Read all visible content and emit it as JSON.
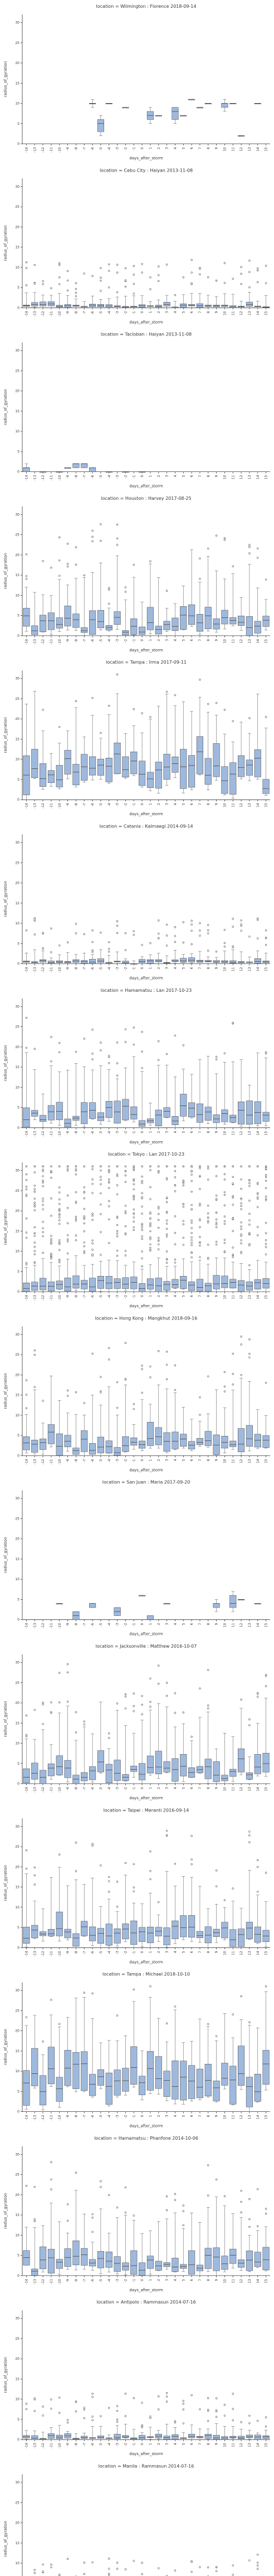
{
  "chart_data": {
    "type": "box",
    "x_label": "days_after_storm",
    "y_label": "radius_of_gyration",
    "x_categories": [
      "-14",
      "-13",
      "-12",
      "-11",
      "-10",
      "-9",
      "-8",
      "-7",
      "-6",
      "-5",
      "-4",
      "-3",
      "-2",
      "-1",
      "0",
      "1",
      "2",
      "3",
      "4",
      "5",
      "6",
      "7",
      "8",
      "9",
      "10",
      "11",
      "12",
      "13",
      "14",
      "15"
    ],
    "ylim": [
      0,
      32
    ],
    "y_ticks": [
      0,
      5,
      10,
      15,
      20,
      25,
      30
    ],
    "panels": [
      {
        "title": "location = Wilmington : Florence 2018-09-14",
        "style": "sparse",
        "boxes": [
          [
            null,
            null,
            null,
            null,
            null
          ],
          [
            null,
            null,
            null,
            null,
            null
          ],
          [
            null,
            null,
            null,
            null,
            null
          ],
          [
            null,
            null,
            null,
            null,
            null
          ],
          [
            null,
            null,
            null,
            null,
            null
          ],
          [
            null,
            null,
            null,
            null,
            null
          ],
          [
            null,
            null,
            null,
            null,
            null
          ],
          [
            null,
            null,
            null,
            null,
            null
          ],
          [
            9,
            10,
            10,
            10,
            11
          ],
          [
            2,
            3,
            5,
            6,
            7
          ],
          [
            10,
            10,
            10,
            10,
            10
          ],
          [
            null,
            null,
            null,
            null,
            null
          ],
          [
            9,
            9,
            9,
            9,
            9
          ],
          [
            null,
            null,
            null,
            null,
            null
          ],
          [
            null,
            null,
            null,
            null,
            null
          ],
          [
            5,
            6,
            7,
            8,
            9
          ],
          [
            7,
            7,
            7,
            7,
            7
          ],
          [
            null,
            null,
            null,
            null,
            null
          ],
          [
            5,
            6,
            8,
            9,
            9
          ],
          [
            7,
            7,
            7,
            7,
            7
          ],
          [
            11,
            11,
            11,
            11,
            11
          ],
          [
            9,
            9,
            9,
            9,
            9
          ],
          [
            10,
            10,
            10,
            10,
            10
          ],
          [
            null,
            null,
            null,
            null,
            null
          ],
          [
            8,
            9,
            10,
            10,
            11
          ],
          [
            10,
            10,
            10,
            10,
            10
          ],
          [
            2,
            2,
            2,
            2,
            2
          ],
          [
            null,
            null,
            null,
            null,
            null
          ],
          [
            10,
            10,
            10,
            10,
            10
          ],
          [
            null,
            null,
            null,
            null,
            null
          ]
        ]
      },
      {
        "title": "location = Cebu City : Haiyan 2013-11-08",
        "style": "flat"
      },
      {
        "title": "location = Tacloban : Haiyan 2013-11-08",
        "style": "sparse",
        "boxes": [
          [
            0,
            0,
            1,
            1,
            2
          ],
          [
            null,
            null,
            null,
            null,
            null
          ],
          [
            0,
            0,
            0,
            0,
            0
          ],
          [
            null,
            null,
            null,
            null,
            null
          ],
          [
            0,
            0,
            0,
            0,
            0
          ],
          [
            1,
            1,
            1,
            1,
            1
          ],
          [
            1,
            1,
            2,
            2,
            2
          ],
          [
            1,
            1,
            2,
            2,
            2
          ],
          [
            0,
            0,
            1,
            1,
            1
          ],
          [
            null,
            null,
            null,
            null,
            null
          ],
          [
            0,
            0,
            0,
            0,
            0
          ],
          [
            null,
            null,
            null,
            null,
            null
          ],
          [
            0,
            0,
            0,
            0,
            0
          ],
          [
            null,
            null,
            null,
            null,
            null
          ],
          [
            0,
            0,
            0,
            0,
            0
          ],
          [
            null,
            null,
            null,
            null,
            null
          ],
          [
            null,
            null,
            null,
            null,
            null
          ],
          [
            null,
            null,
            null,
            null,
            null
          ],
          [
            null,
            null,
            null,
            null,
            null
          ],
          [
            null,
            null,
            null,
            null,
            null
          ],
          [
            null,
            null,
            null,
            null,
            null
          ],
          [
            null,
            null,
            null,
            null,
            null
          ],
          [
            null,
            null,
            null,
            null,
            null
          ],
          [
            null,
            null,
            null,
            null,
            null
          ],
          [
            null,
            null,
            null,
            null,
            null
          ],
          [
            null,
            null,
            null,
            null,
            null
          ],
          [
            null,
            null,
            null,
            null,
            null
          ],
          [
            null,
            null,
            null,
            null,
            null
          ],
          [
            null,
            null,
            null,
            null,
            null
          ],
          [
            null,
            null,
            null,
            null,
            null
          ]
        ]
      },
      {
        "title": "location = Houston : Harvey 2017-08-25",
        "style": "wide"
      },
      {
        "title": "location = Tampa : Irma 2017-09-11",
        "style": "tall"
      },
      {
        "title": "location = Catania : Kalmaegi 2014-09-14",
        "style": "flat"
      },
      {
        "title": "location = Hamamatsu : Lan 2017-10-23",
        "style": "wide"
      },
      {
        "title": "location = Tokyo : Lan 2017-10-23",
        "style": "dense"
      },
      {
        "title": "location = Hong Kong : Mangkhut 2018-09-16",
        "style": "wide"
      },
      {
        "title": "location = San Juan : Maria 2017-09-20",
        "style": "sparse",
        "boxes": [
          [
            null,
            null,
            null,
            null,
            null
          ],
          [
            null,
            null,
            null,
            null,
            null
          ],
          [
            null,
            null,
            null,
            null,
            null
          ],
          [
            null,
            null,
            null,
            null,
            null
          ],
          [
            4,
            4,
            4,
            4,
            4
          ],
          [
            null,
            null,
            null,
            null,
            null
          ],
          [
            0,
            0,
            1,
            2,
            2
          ],
          [
            null,
            null,
            null,
            null,
            null
          ],
          [
            3,
            3,
            4,
            4,
            4
          ],
          [
            null,
            null,
            null,
            null,
            null
          ],
          [
            null,
            null,
            null,
            null,
            null
          ],
          [
            1,
            1,
            2,
            3,
            3
          ],
          [
            null,
            null,
            null,
            null,
            null
          ],
          [
            null,
            null,
            null,
            null,
            null
          ],
          [
            6,
            6,
            6,
            6,
            6
          ],
          [
            0,
            0,
            0,
            1,
            1
          ],
          [
            null,
            null,
            null,
            null,
            null
          ],
          [
            4,
            4,
            4,
            4,
            4
          ],
          [
            null,
            null,
            null,
            null,
            null
          ],
          [
            null,
            null,
            null,
            null,
            null
          ],
          [
            null,
            null,
            null,
            null,
            null
          ],
          [
            null,
            null,
            null,
            null,
            null
          ],
          [
            null,
            null,
            null,
            null,
            null
          ],
          [
            2,
            3,
            4,
            4,
            5
          ],
          [
            null,
            null,
            null,
            null,
            null
          ],
          [
            2,
            3,
            4,
            6,
            7
          ],
          [
            5,
            5,
            5,
            5,
            5
          ],
          [
            null,
            null,
            null,
            null,
            null
          ],
          [
            4,
            4,
            4,
            4,
            4
          ],
          [
            null,
            null,
            null,
            null,
            null
          ]
        ]
      },
      {
        "title": "location = Jacksonville : Matthew 2016-10-07",
        "style": "wide"
      },
      {
        "title": "location = Taipei : Meranti 2016-09-14",
        "style": "wide"
      },
      {
        "title": "location = Tampa : Michael 2018-10-10",
        "style": "tall"
      },
      {
        "title": "location = Hamamatsu : Phanfone 2014-10-06",
        "style": "wide"
      },
      {
        "title": "location = Antipolo : Rammasun 2014-07-16",
        "style": "flat"
      },
      {
        "title": "location = Manila : Rammasun 2014-07-16",
        "style": "flat"
      }
    ]
  }
}
